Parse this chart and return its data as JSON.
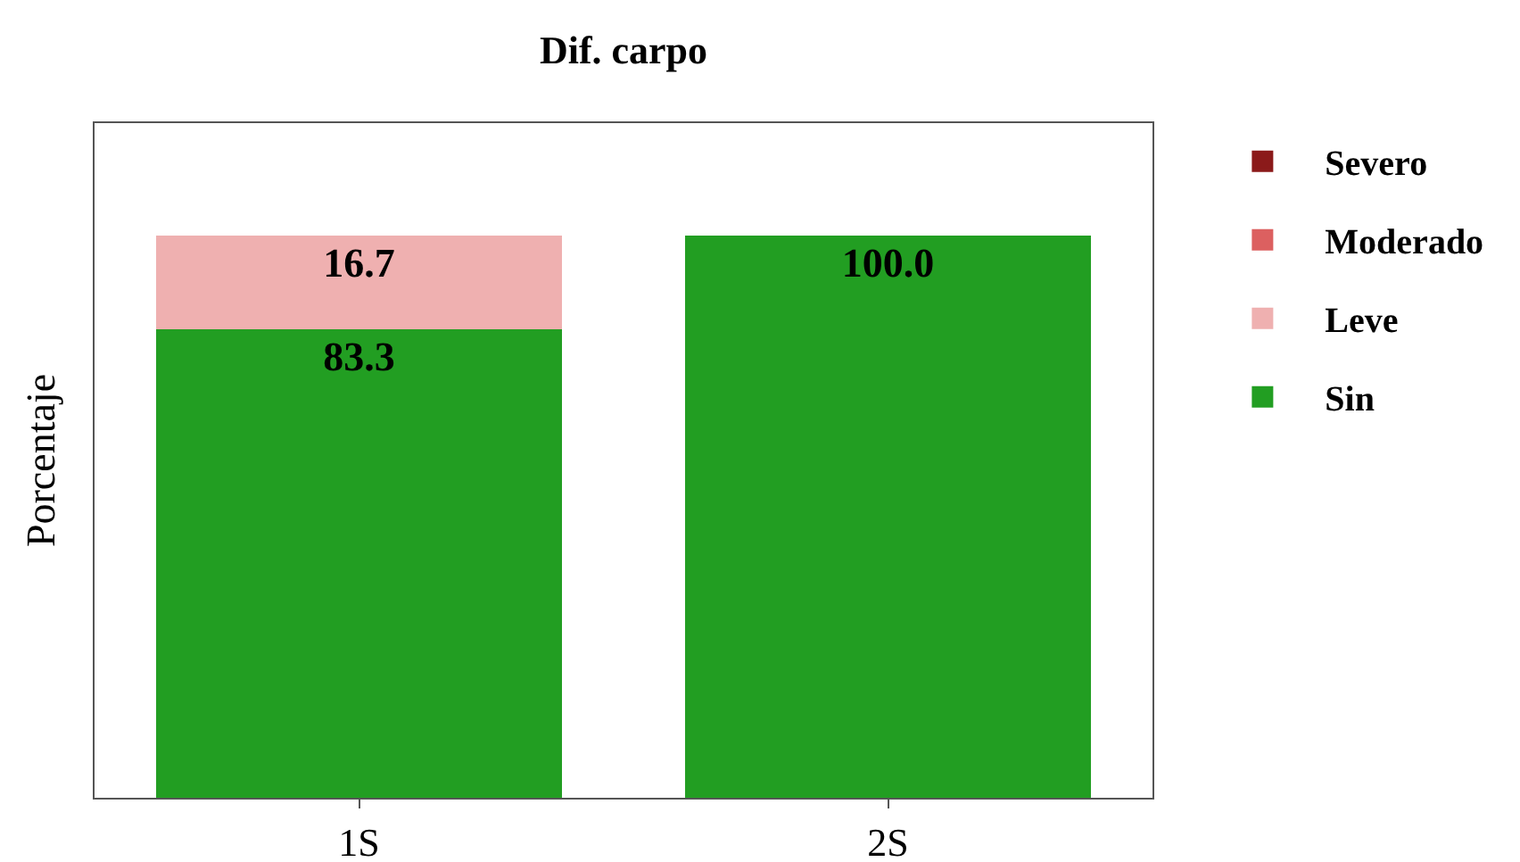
{
  "chart_data": {
    "type": "bar",
    "title": "Dif. carpo",
    "ylabel": "Porcentaje",
    "categories": [
      "1S",
      "2S"
    ],
    "series": [
      {
        "name": "Sin",
        "color": "#229e22",
        "values": [
          83.3,
          100.0
        ],
        "value_labels": [
          "83.3",
          "100.0"
        ]
      },
      {
        "name": "Leve",
        "color": "#efb0b0",
        "values": [
          16.7,
          0
        ],
        "value_labels": [
          "16.7",
          null
        ]
      },
      {
        "name": "Moderado",
        "color": "#dc6060",
        "values": [
          0,
          0
        ],
        "value_labels": [
          null,
          null
        ]
      },
      {
        "name": "Severo",
        "color": "#8b1a1a",
        "values": [
          0,
          0
        ],
        "value_labels": [
          null,
          null
        ]
      }
    ],
    "stacked": true,
    "ylim": [
      0,
      120
    ],
    "tick_labels": "x",
    "legend": "right"
  }
}
